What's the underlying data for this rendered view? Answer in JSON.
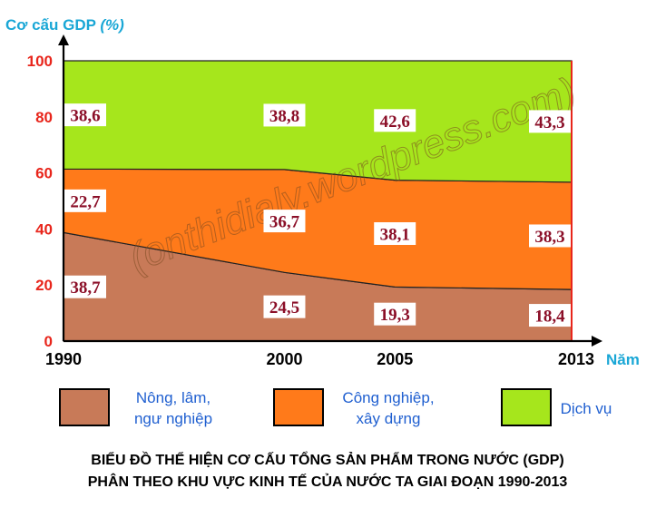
{
  "chart_data": {
    "type": "area",
    "stacked": true,
    "percent": true,
    "x": [
      1990,
      2000,
      2005,
      2013
    ],
    "x_ticks": [
      "1990",
      "2000",
      "2005",
      "2013"
    ],
    "series": [
      {
        "name": "Nông, lâm, ngư nghiệp",
        "legend_lines": [
          "Nông, lâm,",
          "ngư nghiệp"
        ],
        "values": [
          38.7,
          24.5,
          19.3,
          18.4
        ],
        "labels": [
          "38,7",
          "24,5",
          "19,3",
          "18,4"
        ],
        "color": "#c87a58"
      },
      {
        "name": "Công nghiệp, xây dựng",
        "legend_lines": [
          "Công nghiệp,",
          "xây dựng"
        ],
        "values": [
          22.7,
          36.7,
          38.1,
          38.3
        ],
        "labels": [
          "22,7",
          "36,7",
          "38,1",
          "38,3"
        ],
        "color": "#ff7a1a"
      },
      {
        "name": "Dịch vụ",
        "legend_lines": [
          "Dịch vụ"
        ],
        "values": [
          38.6,
          38.8,
          42.6,
          43.3
        ],
        "labels": [
          "38,6",
          "38,8",
          "42,6",
          "43,3"
        ],
        "color": "#a6e61c"
      }
    ],
    "ylim": [
      0,
      100
    ],
    "y_ticks": [
      "0",
      "20",
      "40",
      "60",
      "80",
      "100"
    ],
    "ylabel": "Cơ cấu GDP",
    "ylabel_unit": "(%)",
    "xlabel": "Năm",
    "title_lines": [
      "BIỂU ĐỒ THỂ HIỆN CƠ CẤU TỔNG SẢN PHẨM TRONG NƯỚC (GDP)",
      "PHÂN THEO KHU VỰC KINH TẾ CỦA NƯỚC TA GIAI ĐOẠN 1990-2013"
    ],
    "watermark": "(onthidialy.wordpress.com)",
    "legend_position": "bottom",
    "grid": false
  }
}
